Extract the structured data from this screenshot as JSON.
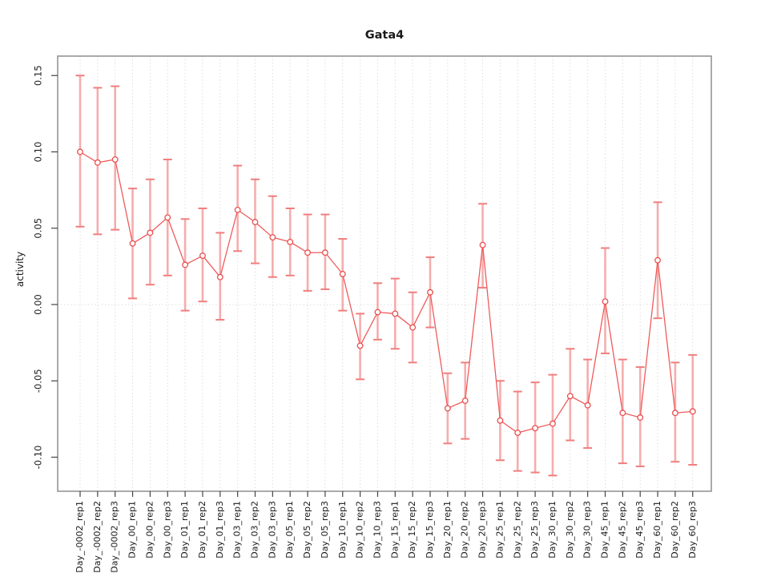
{
  "window": {
    "background": "#ffffff"
  },
  "colors": {
    "series_line": "#ef5b5b",
    "marker_stroke": "#ea4f4f",
    "marker_fill": "#ffffff",
    "error_bar": "#f5a0a0",
    "error_cap": "#f07e7e",
    "grid": "#d6d6d6",
    "zero_line": "#d6d6d6",
    "box_border": "#8d8d8d",
    "tick": "#444444",
    "text": "#1a1a1a"
  },
  "chart_data": {
    "type": "line",
    "title": "Gata4",
    "xlabel": "",
    "ylabel": "activity",
    "ylim": [
      -0.122,
      0.163
    ],
    "yticks": [
      -0.1,
      -0.05,
      0.0,
      0.05,
      0.1,
      0.15
    ],
    "ytick_labels": [
      "-0.10",
      "-0.05",
      "0.00",
      "0.05",
      "0.10",
      "0.15"
    ],
    "grid": "vertical dotted gridline at every category; horizontal dotted line at y=0 only",
    "legend": "none",
    "marker": "open-circle",
    "error_bars": true,
    "categories": [
      "Day_-0002_rep1",
      "Day_-0002_rep2",
      "Day_-0002_rep3",
      "Day_00_rep1",
      "Day_00_rep2",
      "Day_00_rep3",
      "Day_01_rep1",
      "Day_01_rep2",
      "Day_01_rep3",
      "Day_03_rep1",
      "Day_03_rep2",
      "Day_03_rep3",
      "Day_05_rep1",
      "Day_05_rep2",
      "Day_05_rep3",
      "Day_10_rep1",
      "Day_10_rep2",
      "Day_10_rep3",
      "Day_15_rep1",
      "Day_15_rep2",
      "Day_15_rep3",
      "Day_20_rep1",
      "Day_20_rep2",
      "Day_20_rep3",
      "Day_25_rep1",
      "Day_25_rep2",
      "Day_25_rep3",
      "Day_30_rep1",
      "Day_30_rep2",
      "Day_30_rep3",
      "Day_45_rep1",
      "Day_45_rep2",
      "Day_45_rep3",
      "Day_60_rep1",
      "Day_60_rep2",
      "Day_60_rep3"
    ],
    "series": [
      {
        "name": "activity",
        "values": [
          0.1,
          0.093,
          0.095,
          0.04,
          0.047,
          0.057,
          0.026,
          0.032,
          0.018,
          0.062,
          0.054,
          0.044,
          0.041,
          0.034,
          0.034,
          0.02,
          -0.027,
          -0.005,
          -0.006,
          -0.015,
          0.008,
          -0.068,
          -0.063,
          0.039,
          -0.076,
          -0.084,
          -0.081,
          -0.078,
          -0.06,
          -0.066,
          0.002,
          -0.071,
          -0.074,
          0.029,
          -0.071,
          -0.07
        ],
        "err_high": [
          0.15,
          0.142,
          0.143,
          0.076,
          0.082,
          0.095,
          0.056,
          0.063,
          0.047,
          0.091,
          0.082,
          0.071,
          0.063,
          0.059,
          0.059,
          0.043,
          -0.006,
          0.014,
          0.017,
          0.008,
          0.031,
          -0.045,
          -0.038,
          0.066,
          -0.05,
          -0.057,
          -0.051,
          -0.046,
          -0.029,
          -0.036,
          0.037,
          -0.036,
          -0.041,
          0.067,
          -0.038,
          -0.033
        ],
        "err_low": [
          0.051,
          0.046,
          0.049,
          0.004,
          0.013,
          0.019,
          -0.004,
          0.002,
          -0.01,
          0.035,
          0.027,
          0.018,
          0.019,
          0.009,
          0.01,
          -0.004,
          -0.049,
          -0.023,
          -0.029,
          -0.038,
          -0.015,
          -0.091,
          -0.088,
          0.011,
          -0.102,
          -0.109,
          -0.11,
          -0.112,
          -0.089,
          -0.094,
          -0.032,
          -0.104,
          -0.106,
          -0.009,
          -0.103,
          -0.105
        ]
      }
    ]
  }
}
